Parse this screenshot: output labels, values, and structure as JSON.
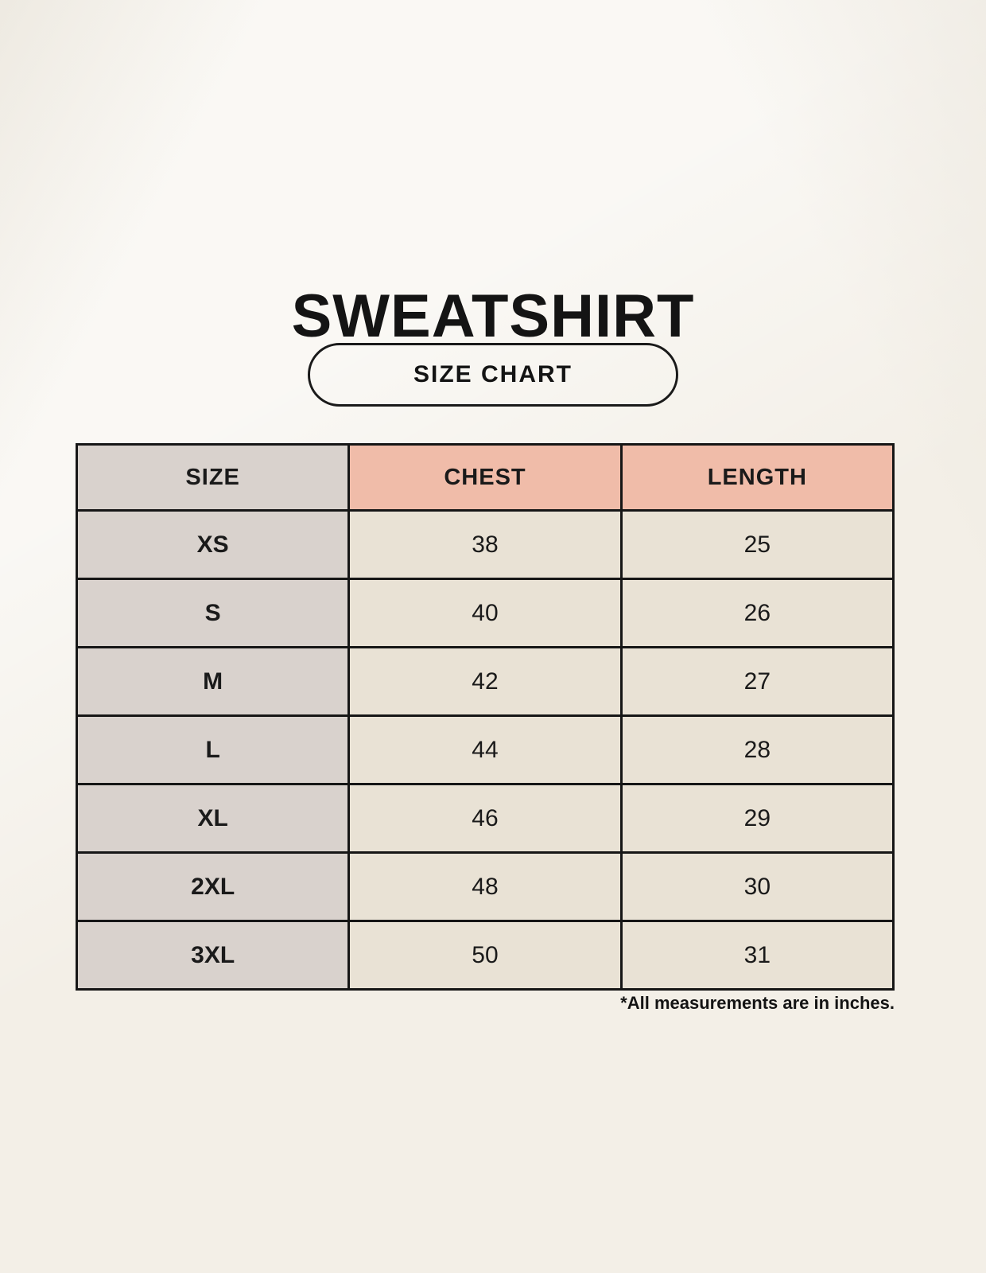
{
  "page": {
    "title": "SWEATSHIRT",
    "badge_label": "SIZE CHART",
    "note": "*All measurements are in inches."
  },
  "colors": {
    "background": "#f3efe7",
    "header_accent": "#f0bca9",
    "size_column": "#d9d2cd",
    "value_cell": "#e9e2d5",
    "border": "#161616",
    "text": "#141414"
  },
  "chart_data": {
    "type": "table",
    "title": "SWEATSHIRT",
    "subtitle": "SIZE CHART",
    "columns": [
      "SIZE",
      "CHEST",
      "LENGTH"
    ],
    "rows": [
      [
        "XS",
        "38",
        "25"
      ],
      [
        "S",
        "40",
        "26"
      ],
      [
        "M",
        "42",
        "27"
      ],
      [
        "L",
        "44",
        "28"
      ],
      [
        "XL",
        "46",
        "29"
      ],
      [
        "2XL",
        "48",
        "30"
      ],
      [
        "3XL",
        "50",
        "31"
      ]
    ],
    "units_note": "*All measurements are in inches."
  }
}
